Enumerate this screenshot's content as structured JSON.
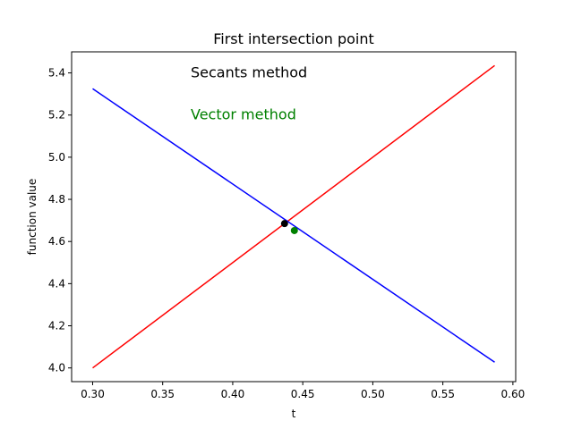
{
  "chart_data": {
    "type": "line",
    "title": "First intersection point",
    "xlabel": "t",
    "ylabel": "function value",
    "xlim": [
      0.285,
      0.602
    ],
    "ylim": [
      3.935,
      5.5
    ],
    "xticks": [
      0.3,
      0.35,
      0.4,
      0.45,
      0.5,
      0.55,
      0.6
    ],
    "xtick_labels": [
      "0.30",
      "0.35",
      "0.40",
      "0.45",
      "0.50",
      "0.55",
      "0.60"
    ],
    "yticks": [
      4.0,
      4.2,
      4.4,
      4.6,
      4.8,
      5.0,
      5.2,
      5.4
    ],
    "ytick_labels": [
      "4.0",
      "4.2",
      "4.4",
      "4.6",
      "4.8",
      "5.0",
      "5.2",
      "5.4"
    ],
    "grid": false,
    "series": [
      {
        "color": "#ff0000",
        "x": [
          0.3,
          0.587
        ],
        "y": [
          4.0,
          5.435
        ]
      },
      {
        "color": "#0000ff",
        "x": [
          0.3,
          0.587
        ],
        "y": [
          5.325,
          4.027
        ]
      }
    ],
    "points": [
      {
        "color": "#000000",
        "x": 0.437,
        "y": 4.685
      },
      {
        "color": "#008000",
        "x": 0.444,
        "y": 4.652
      }
    ],
    "annotations": [
      {
        "text": "Secants method",
        "color": "#000000",
        "x": 0.37,
        "y": 5.4
      },
      {
        "text": "Vector method",
        "color": "#008000",
        "x": 0.37,
        "y": 5.2
      }
    ]
  }
}
